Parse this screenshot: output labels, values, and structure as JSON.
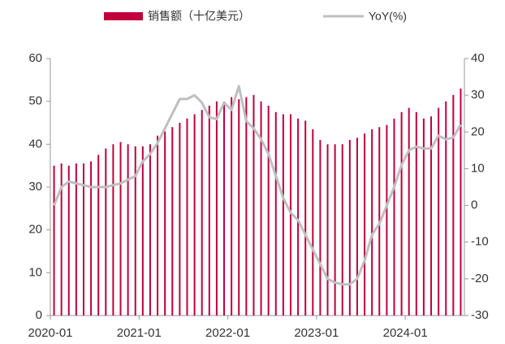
{
  "chart_data": {
    "type": "bar-line",
    "categories": [
      "2020-01",
      null,
      null,
      null,
      null,
      null,
      null,
      null,
      null,
      null,
      null,
      null,
      "2021-01",
      null,
      null,
      null,
      null,
      null,
      null,
      null,
      null,
      null,
      null,
      null,
      "2022-01",
      null,
      null,
      null,
      null,
      null,
      null,
      null,
      null,
      null,
      null,
      null,
      "2023-01",
      null,
      null,
      null,
      null,
      null,
      null,
      null,
      null,
      null,
      null,
      null,
      "2024-01",
      null,
      null,
      null,
      null,
      null,
      null,
      null
    ],
    "series": [
      {
        "name": "销售额（十亿美元）",
        "color": "#c0003c",
        "kind": "bar",
        "values": [
          35,
          35.5,
          35,
          35.5,
          35.5,
          36,
          37.5,
          39,
          40,
          40.5,
          40,
          39.5,
          39.5,
          40,
          42,
          43,
          44,
          45,
          46,
          47,
          48,
          49,
          50,
          50,
          51,
          50.5,
          51,
          51.5,
          50,
          49,
          47.5,
          47,
          47,
          46,
          45.5,
          43.5,
          41,
          40,
          40,
          40,
          41,
          41.5,
          42.5,
          43.5,
          44,
          44.5,
          46,
          47.5,
          48.5,
          47.5,
          46,
          46.5,
          48.5,
          50,
          51.5,
          53
        ]
      },
      {
        "name": "YoY(%)",
        "color": "#bfbfbf",
        "kind": "line",
        "axis": "y2",
        "values": [
          0,
          5,
          6.5,
          6,
          5.5,
          5,
          5,
          5,
          5.5,
          6,
          7,
          8,
          12,
          14,
          17,
          21,
          25,
          29,
          29,
          30,
          28,
          24,
          23.5,
          28,
          26,
          32.5,
          23,
          21,
          18,
          14,
          8,
          2,
          -2,
          -4,
          -8,
          -12,
          -16,
          -20,
          -21,
          -21.5,
          -21.5,
          -20,
          -15,
          -8,
          -5,
          0,
          5,
          11,
          15,
          16,
          15.5,
          15.5,
          19,
          18,
          18.5,
          22
        ]
      }
    ],
    "ylim": [
      0,
      60
    ],
    "yticks": [
      0,
      10,
      20,
      30,
      40,
      50,
      60
    ],
    "y2lim": [
      -30,
      40
    ],
    "y2ticks": [
      -30,
      -20,
      -10,
      0,
      10,
      20,
      30,
      40
    ]
  }
}
